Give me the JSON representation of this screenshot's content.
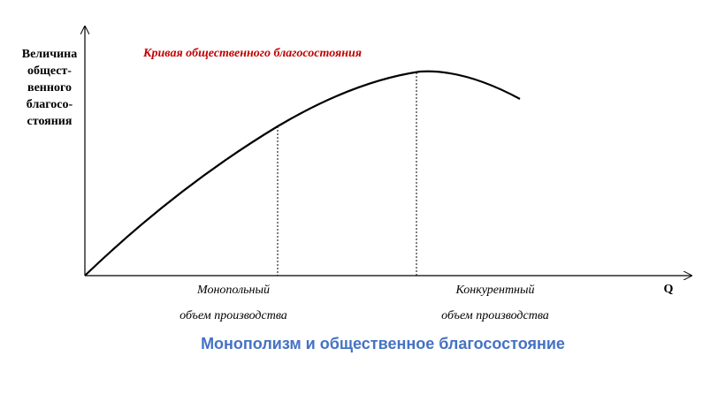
{
  "y_axis_label": [
    "Величина",
    "общест-",
    "венного",
    "благосо-",
    "стояния"
  ],
  "x_axis_label": "Q",
  "curve_label": "Кривая общественного благосостояния",
  "markers": [
    {
      "lines": [
        "Монопольный",
        "объем производства"
      ]
    },
    {
      "lines": [
        "Конкурентный",
        "объем производства"
      ]
    }
  ],
  "caption": "Монополизм и общественное благосостояние"
}
